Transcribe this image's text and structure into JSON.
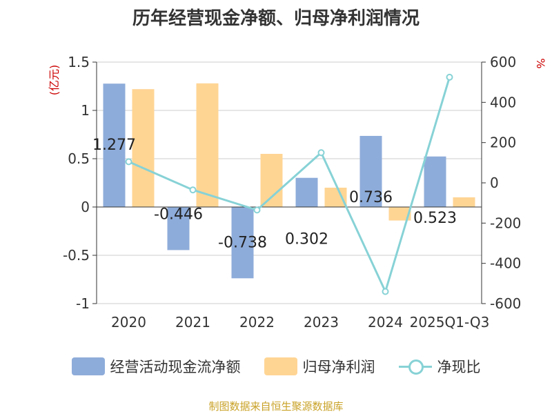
{
  "title": "历年经营现金净额、归母净利润情况",
  "source": "制图数据来自恒生聚源数据库",
  "colors": {
    "cash_flow": "#8eacda",
    "net_profit": "#ffd594",
    "ratio": "#87d2d6",
    "axis_label": "#cc0000",
    "source": "#c9a227",
    "grid": "#cccccc",
    "text": "#333333"
  },
  "chart_data": {
    "type": "bar",
    "categories": [
      "2020",
      "2021",
      "2022",
      "2023",
      "2024",
      "2025Q1-Q3"
    ],
    "y_left": {
      "label": "(亿元)",
      "ylim": [
        -1,
        1.5
      ],
      "ticks": [
        1.5,
        1,
        0.5,
        0,
        -0.5,
        -1
      ],
      "tick_labels": [
        "1.5",
        "1",
        "0.5",
        "0",
        "-0.5",
        "-1"
      ]
    },
    "y_right": {
      "label": "%",
      "ylim": [
        -600,
        600
      ],
      "ticks": [
        600,
        400,
        200,
        0,
        -200,
        -400,
        -600
      ],
      "tick_labels": [
        "600",
        "400",
        "200",
        "0",
        "-200",
        "-400",
        "-600"
      ]
    },
    "grid": true,
    "legend": "bottom",
    "series": [
      {
        "name": "经营活动现金流净额",
        "type": "bar",
        "axis": "left",
        "values": [
          1.277,
          -0.446,
          -0.738,
          0.302,
          0.736,
          0.523
        ],
        "labels": [
          "1.277",
          "-0.446",
          "-0.738",
          "0.302",
          "0.736",
          "0.523"
        ]
      },
      {
        "name": "归母净利润",
        "type": "bar",
        "axis": "left",
        "values": [
          1.22,
          1.28,
          0.55,
          0.2,
          -0.14,
          0.1
        ]
      },
      {
        "name": "净现比",
        "type": "line",
        "axis": "right",
        "values": [
          105,
          -35,
          -135,
          150,
          -540,
          525
        ]
      }
    ]
  }
}
